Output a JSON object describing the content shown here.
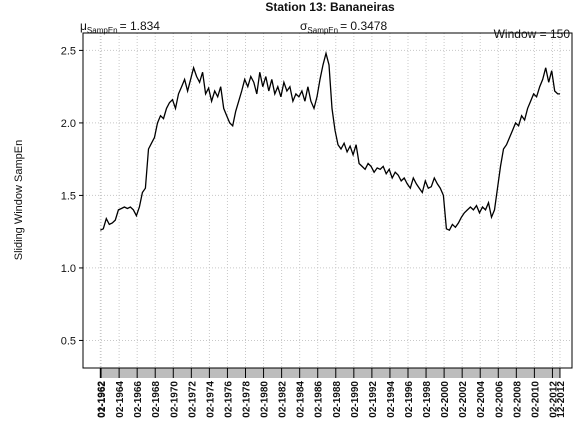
{
  "chart_data": {
    "type": "line",
    "title": "Station 13: Bananeiras",
    "ylabel": "Sliding Window SampEn",
    "annotations": [
      {
        "symbol": "μ",
        "subscript": "SampEn",
        "text": "= 1.834"
      },
      {
        "symbol": "σ",
        "subscript": "SampEn",
        "text": "= 0.3478"
      },
      {
        "text": "Window = 150"
      }
    ],
    "xlim": [
      "02-1960",
      "04-2014"
    ],
    "ylim": [
      0.31,
      2.62
    ],
    "yticks": [
      0.5,
      {
        "value": 1,
        "label": "1.0"
      },
      1.5,
      {
        "value": 2,
        "label": "2.0"
      },
      2.5
    ],
    "xticks": [
      "01-1962",
      "02-1962",
      "02-1964",
      "02-1966",
      "02-1968",
      "02-1970",
      "02-1972",
      "02-1974",
      "02-1976",
      "02-1978",
      "02-1980",
      "02-1982",
      "02-1984",
      "02-1986",
      "02-1988",
      "02-1990",
      "02-1992",
      "02-1994",
      "02-1996",
      "02-1998",
      "02-2000",
      "02-2002",
      "02-2004",
      "02-2006",
      "02-2008",
      "02-2010",
      "02-2012",
      "12-2012"
    ],
    "grid": true,
    "x": [
      "01-1962",
      "05-1962",
      "09-1962",
      "01-1963",
      "05-1963",
      "09-1963",
      "01-1964",
      "05-1964",
      "09-1964",
      "01-1965",
      "05-1965",
      "09-1965",
      "01-1966",
      "05-1966",
      "09-1966",
      "01-1967",
      "05-1967",
      "09-1967",
      "01-1968",
      "05-1968",
      "09-1968",
      "01-1969",
      "05-1969",
      "09-1969",
      "01-1970",
      "05-1970",
      "09-1970",
      "01-1971",
      "05-1971",
      "09-1971",
      "01-1972",
      "05-1972",
      "09-1972",
      "01-1973",
      "05-1973",
      "09-1973",
      "01-1974",
      "05-1974",
      "09-1974",
      "01-1975",
      "05-1975",
      "09-1975",
      "01-1976",
      "05-1976",
      "09-1976",
      "01-1977",
      "05-1977",
      "09-1977",
      "01-1978",
      "05-1978",
      "09-1978",
      "01-1979",
      "05-1979",
      "09-1979",
      "01-1980",
      "05-1980",
      "09-1980",
      "01-1981",
      "05-1981",
      "09-1981",
      "01-1982",
      "05-1982",
      "09-1982",
      "01-1983",
      "05-1983",
      "09-1983",
      "01-1984",
      "05-1984",
      "09-1984",
      "01-1985",
      "05-1985",
      "09-1985",
      "01-1986",
      "05-1986",
      "09-1986",
      "01-1987",
      "05-1987",
      "09-1987",
      "01-1988",
      "05-1988",
      "09-1988",
      "01-1989",
      "05-1989",
      "09-1989",
      "01-1990",
      "05-1990",
      "09-1990",
      "01-1991",
      "05-1991",
      "09-1991",
      "01-1992",
      "05-1992",
      "09-1992",
      "01-1993",
      "05-1993",
      "09-1993",
      "01-1994",
      "05-1994",
      "09-1994",
      "01-1995",
      "05-1995",
      "09-1995",
      "01-1996",
      "05-1996",
      "09-1996",
      "01-1997",
      "05-1997",
      "09-1997",
      "01-1998",
      "05-1998",
      "09-1998",
      "01-1999",
      "05-1999",
      "09-1999",
      "01-2000",
      "05-2000",
      "09-2000",
      "01-2001",
      "05-2001",
      "09-2001",
      "01-2002",
      "05-2002",
      "09-2002",
      "01-2003",
      "05-2003",
      "09-2003",
      "01-2004",
      "05-2004",
      "09-2004",
      "01-2005",
      "05-2005",
      "09-2005",
      "01-2006",
      "05-2006",
      "09-2006",
      "01-2007",
      "05-2007",
      "09-2007",
      "01-2008",
      "05-2008",
      "09-2008",
      "01-2009",
      "05-2009",
      "09-2009",
      "01-2010",
      "05-2010",
      "09-2010",
      "01-2011",
      "05-2011",
      "09-2011",
      "01-2012",
      "05-2012",
      "09-2012",
      "12-2012"
    ],
    "series": [
      {
        "color": "#000000",
        "values": [
          1.26,
          1.27,
          1.34,
          1.3,
          1.31,
          1.33,
          1.4,
          1.41,
          1.42,
          1.41,
          1.42,
          1.4,
          1.36,
          1.42,
          1.52,
          1.55,
          1.82,
          1.86,
          1.9,
          2.0,
          2.05,
          2.03,
          2.1,
          2.14,
          2.16,
          2.1,
          2.2,
          2.25,
          2.3,
          2.22,
          2.3,
          2.38,
          2.32,
          2.28,
          2.35,
          2.2,
          2.24,
          2.15,
          2.22,
          2.18,
          2.25,
          2.1,
          2.05,
          2.0,
          1.98,
          2.08,
          2.15,
          2.22,
          2.3,
          2.25,
          2.32,
          2.28,
          2.2,
          2.35,
          2.25,
          2.32,
          2.22,
          2.3,
          2.2,
          2.25,
          2.18,
          2.28,
          2.22,
          2.25,
          2.15,
          2.2,
          2.18,
          2.22,
          2.15,
          2.25,
          2.15,
          2.1,
          2.18,
          2.3,
          2.4,
          2.48,
          2.4,
          2.1,
          1.95,
          1.85,
          1.82,
          1.86,
          1.8,
          1.84,
          1.78,
          1.85,
          1.72,
          1.7,
          1.68,
          1.72,
          1.7,
          1.66,
          1.69,
          1.68,
          1.7,
          1.65,
          1.68,
          1.62,
          1.66,
          1.64,
          1.6,
          1.62,
          1.58,
          1.55,
          1.62,
          1.58,
          1.55,
          1.52,
          1.6,
          1.55,
          1.56,
          1.62,
          1.58,
          1.55,
          1.5,
          1.27,
          1.26,
          1.3,
          1.28,
          1.31,
          1.35,
          1.38,
          1.4,
          1.42,
          1.4,
          1.43,
          1.38,
          1.42,
          1.4,
          1.45,
          1.35,
          1.4,
          1.55,
          1.7,
          1.82,
          1.85,
          1.9,
          1.95,
          2.0,
          1.98,
          2.05,
          2.02,
          2.1,
          2.15,
          2.2,
          2.18,
          2.25,
          2.3,
          2.38,
          2.28,
          2.36,
          2.22,
          2.2,
          2.2
        ]
      }
    ]
  }
}
